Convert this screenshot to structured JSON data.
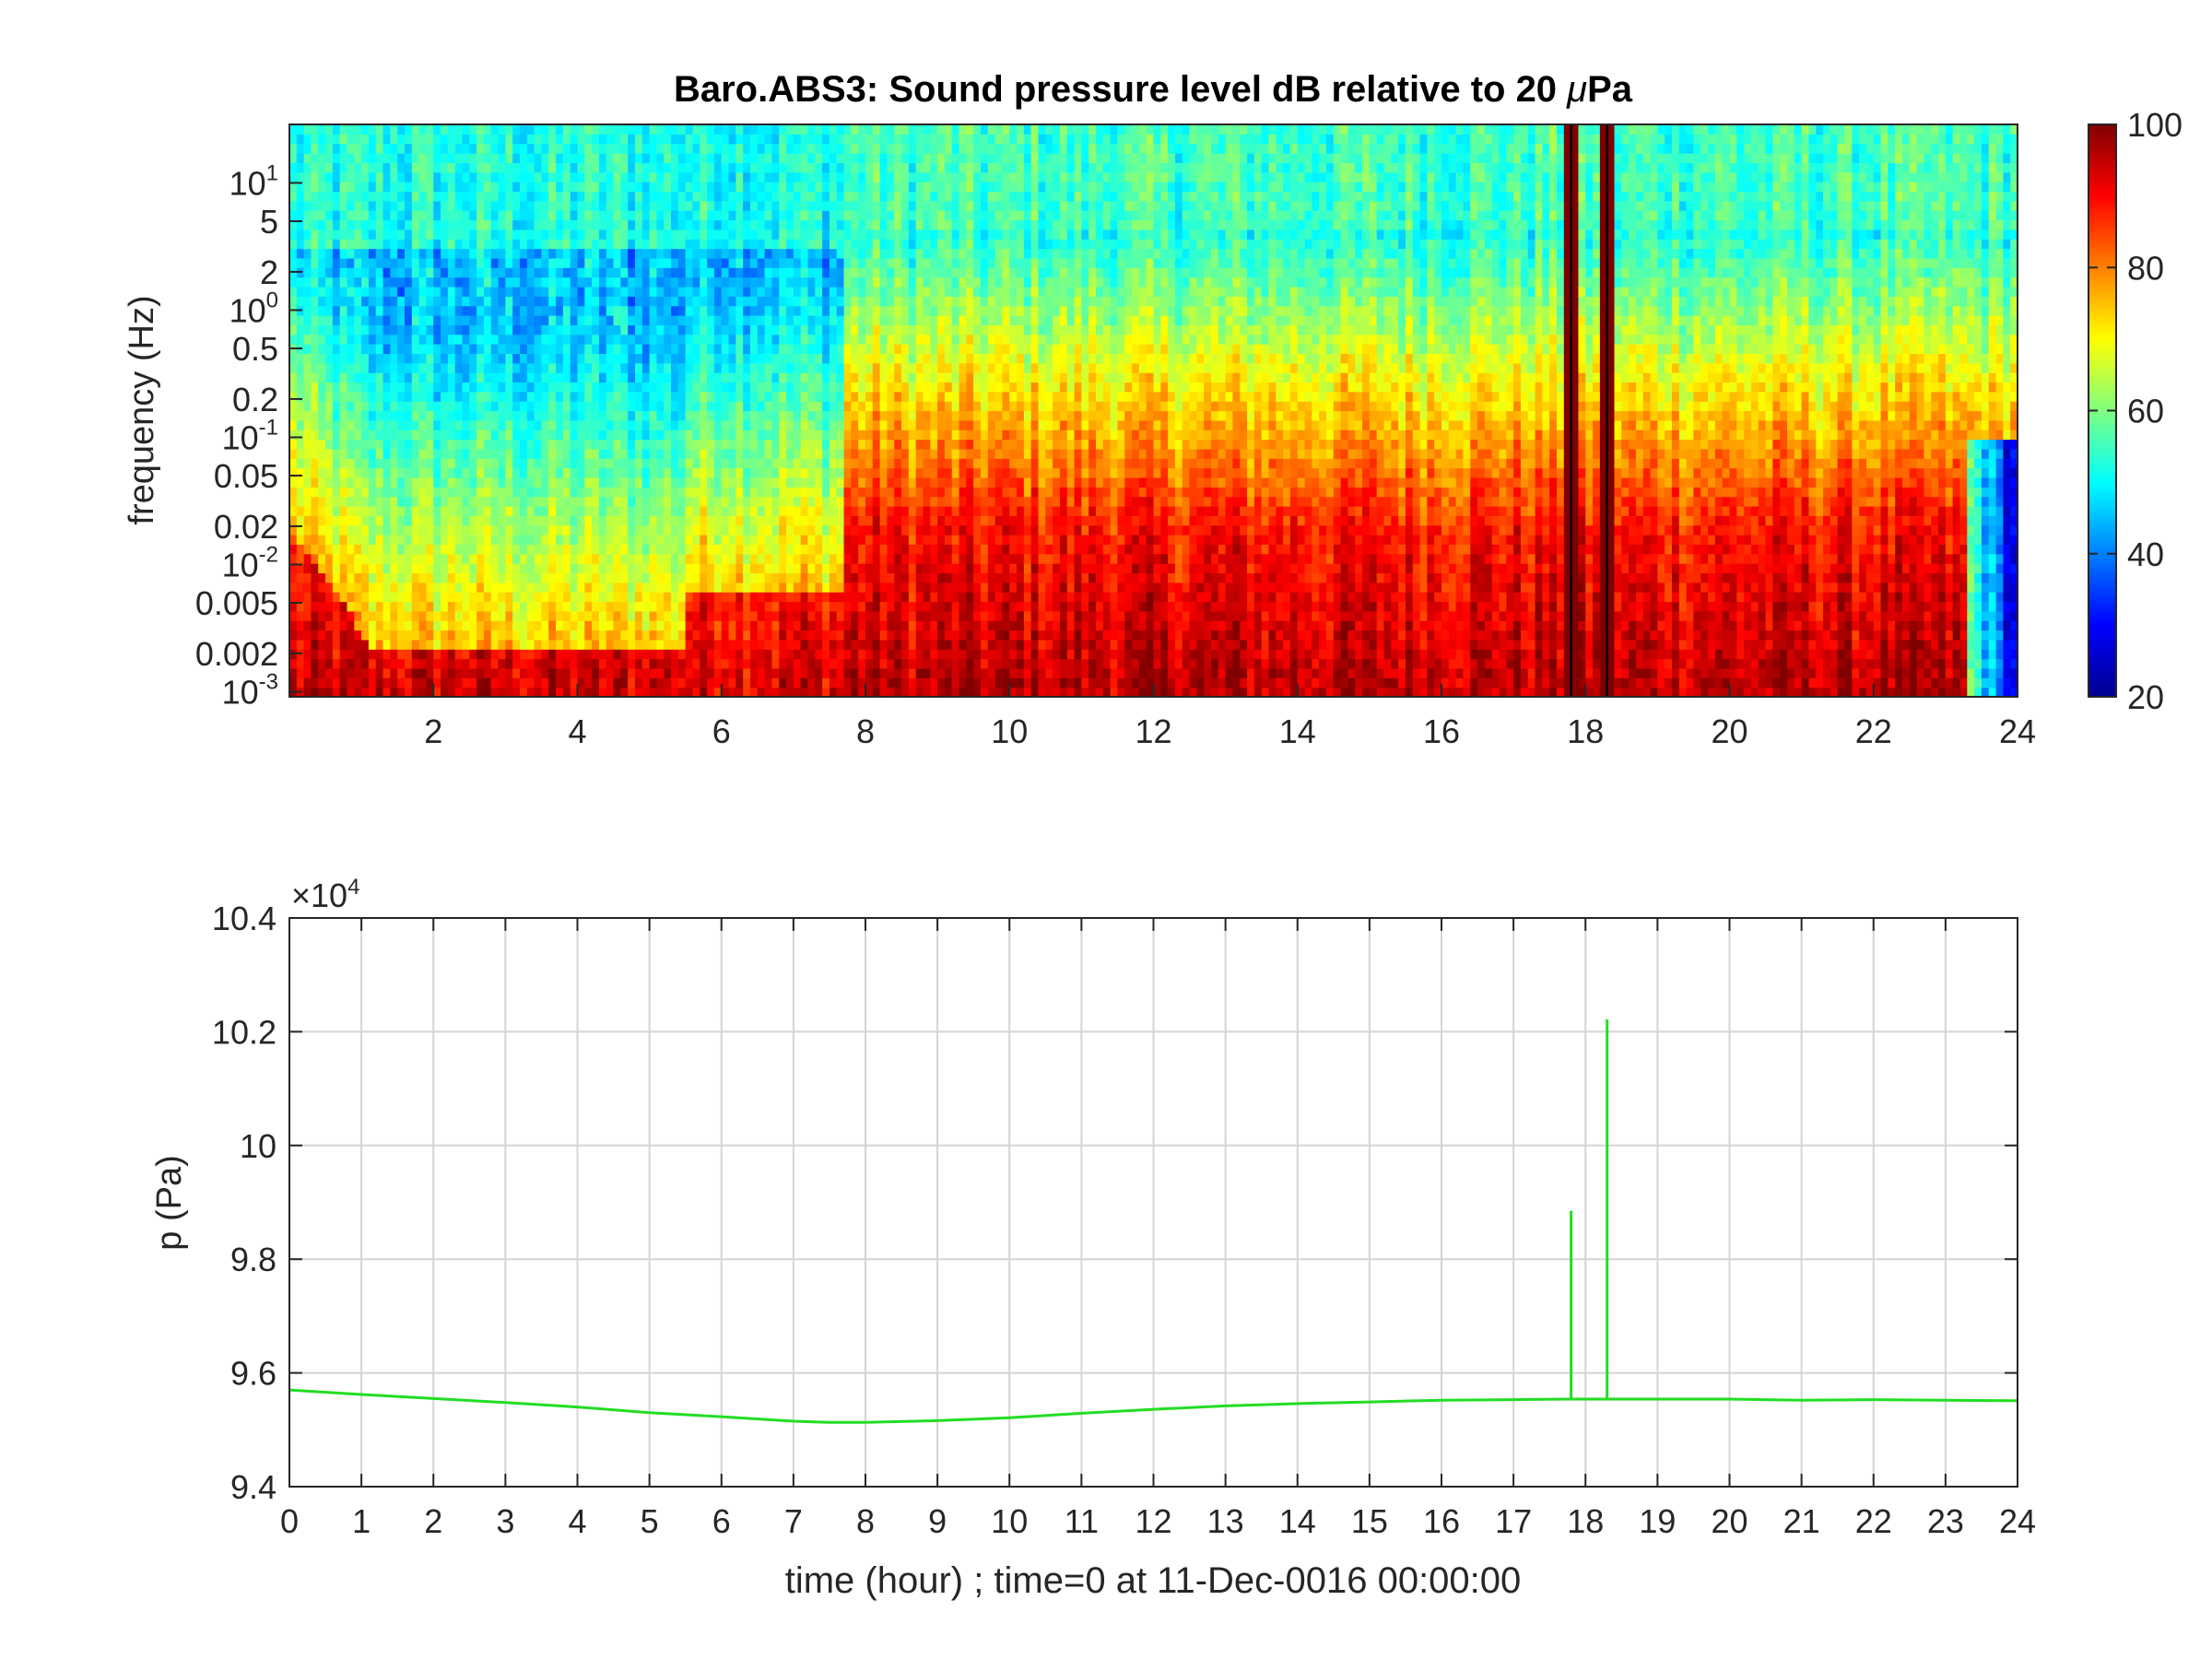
{
  "chart_data": [
    {
      "type": "heatmap",
      "title": "Baro.ABS3: Sound pressure level dB relative to 20 μPa",
      "title_main": "Baro.ABS3: Sound pressure level dB relative to 20 ",
      "title_mu": "μ",
      "title_unit": "Pa",
      "xlabel": "",
      "ylabel": "frequency (Hz)",
      "xlim": [
        0,
        24
      ],
      "ylim_log10": [
        -3.04,
        1.46
      ],
      "y_scale": "log",
      "x_ticks": [
        2,
        4,
        6,
        8,
        10,
        12,
        14,
        16,
        18,
        20,
        22,
        24
      ],
      "x_tick_labels": [
        "2",
        "4",
        "6",
        "8",
        "10",
        "12",
        "14",
        "16",
        "18",
        "20",
        "22",
        "24"
      ],
      "y_ticks": [
        {
          "value": 10,
          "label": "10",
          "sup": "1"
        },
        {
          "value": 5,
          "label": "5",
          "sup": ""
        },
        {
          "value": 2,
          "label": "2",
          "sup": ""
        },
        {
          "value": 1,
          "label": "10",
          "sup": "0"
        },
        {
          "value": 0.5,
          "label": "0.5",
          "sup": ""
        },
        {
          "value": 0.2,
          "label": "0.2",
          "sup": ""
        },
        {
          "value": 0.1,
          "label": "10",
          "sup": "-1"
        },
        {
          "value": 0.05,
          "label": "0.05",
          "sup": ""
        },
        {
          "value": 0.02,
          "label": "0.02",
          "sup": ""
        },
        {
          "value": 0.01,
          "label": "10",
          "sup": "-2"
        },
        {
          "value": 0.005,
          "label": "0.005",
          "sup": ""
        },
        {
          "value": 0.002,
          "label": "0.002",
          "sup": ""
        },
        {
          "value": 0.001,
          "label": "10",
          "sup": "-3"
        }
      ],
      "colormap": "jet",
      "colorbar": {
        "min": 20,
        "max": 100,
        "ticks": [
          20,
          40,
          60,
          80,
          100
        ],
        "tick_labels": [
          "20",
          "40",
          "60",
          "80",
          "100"
        ]
      },
      "quiet_period_hours": [
        0,
        7.7
      ],
      "active_period_hours": [
        7.7,
        23.8
      ],
      "spike_hours": [
        17.8,
        18.3
      ],
      "ambient_level_db": 52,
      "low_freq_level_db": 95
    },
    {
      "type": "line",
      "title": "",
      "xlabel": "time (hour) ; time=0 at 11-Dec-0016 00:00:00",
      "ylabel": "p (Pa)",
      "xlim": [
        0,
        24
      ],
      "ylim": [
        94000,
        104000
      ],
      "exponent_label": "×10",
      "exponent_sup": "4",
      "grid": true,
      "line_color": "#22dd22",
      "x_ticks": [
        0,
        1,
        2,
        3,
        4,
        5,
        6,
        7,
        8,
        9,
        10,
        11,
        12,
        13,
        14,
        15,
        16,
        17,
        18,
        19,
        20,
        21,
        22,
        23,
        24
      ],
      "x_tick_labels": [
        "0",
        "1",
        "2",
        "3",
        "4",
        "5",
        "6",
        "7",
        "8",
        "9",
        "10",
        "11",
        "12",
        "13",
        "14",
        "15",
        "16",
        "17",
        "18",
        "19",
        "20",
        "21",
        "22",
        "23",
        "24"
      ],
      "y_ticks": [
        94000,
        96000,
        98000,
        100000,
        102000,
        104000
      ],
      "y_tick_labels": [
        "9.4",
        "9.6",
        "9.8",
        "10",
        "10.2",
        "10.4"
      ],
      "series": [
        {
          "x": [
            0,
            1,
            2,
            3,
            4,
            5,
            6,
            7,
            7.5,
            8,
            9,
            10,
            11,
            12,
            13,
            14,
            15,
            16,
            17,
            17.75,
            18.25,
            19,
            20,
            21,
            22,
            23,
            24
          ],
          "y": [
            95700,
            95620,
            95550,
            95480,
            95400,
            95300,
            95230,
            95150,
            95130,
            95130,
            95160,
            95210,
            95290,
            95360,
            95420,
            95460,
            95490,
            95520,
            95530,
            95540,
            95540,
            95540,
            95540,
            95520,
            95530,
            95520,
            95510
          ]
        }
      ],
      "spikes": [
        {
          "x": 17.8,
          "base": 95540,
          "peak": 98850
        },
        {
          "x": 18.3,
          "base": 95540,
          "peak": 102220
        }
      ]
    }
  ]
}
